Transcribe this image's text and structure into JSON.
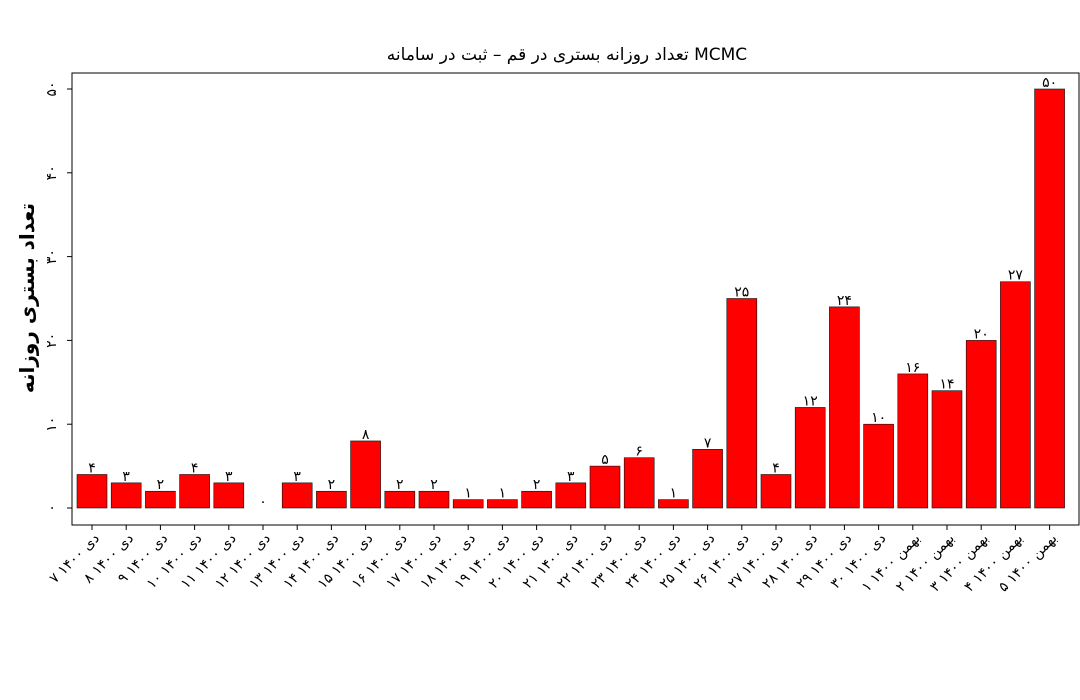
{
  "chart_data": {
    "type": "bar",
    "title": "تعداد روزانه بستری در قم – ثبت در سامانه MCMC",
    "xlabel": "",
    "ylabel": "تعداد بستری روزانه",
    "ylim": [
      0,
      52
    ],
    "yticks": [
      0,
      10,
      20,
      30,
      40,
      50
    ],
    "ytick_labels": [
      "۰",
      "۱۰",
      "۲۰",
      "۳۰",
      "۴۰",
      "۵۰"
    ],
    "grid": false,
    "bar_color": "#ff0000",
    "categories": [
      "۷ دی ۱۴۰۰",
      "۸ دی ۱۴۰۰",
      "۹ دی ۱۴۰۰",
      "۱۰ دی ۱۴۰۰",
      "۱۱ دی ۱۴۰۰",
      "۱۲ دی ۱۴۰۰",
      "۱۳ دی ۱۴۰۰",
      "۱۴ دی ۱۴۰۰",
      "۱۵ دی ۱۴۰۰",
      "۱۶ دی ۱۴۰۰",
      "۱۷ دی ۱۴۰۰",
      "۱۸ دی ۱۴۰۰",
      "۱۹ دی ۱۴۰۰",
      "۲۰ دی ۱۴۰۰",
      "۲۱ دی ۱۴۰۰",
      "۲۲ دی ۱۴۰۰",
      "۲۳ دی ۱۴۰۰",
      "۲۴ دی ۱۴۰۰",
      "۲۵ دی ۱۴۰۰",
      "۲۶ دی ۱۴۰۰",
      "۲۷ دی ۱۴۰۰",
      "۲۸ دی ۱۴۰۰",
      "۲۹ دی ۱۴۰۰",
      "۳۰ دی ۱۴۰۰",
      "۱ بهمن ۱۴۰۰",
      "۲ بهمن ۱۴۰۰",
      "۳ بهمن ۱۴۰۰",
      "۴ بهمن ۱۴۰۰",
      "۵ بهمن ۱۴۰۰"
    ],
    "values": [
      4,
      3,
      2,
      4,
      3,
      0,
      3,
      2,
      8,
      2,
      2,
      1,
      1,
      2,
      3,
      5,
      6,
      1,
      7,
      25,
      4,
      12,
      24,
      10,
      16,
      14,
      20,
      27,
      50
    ],
    "data_labels": [
      "۴",
      "۳",
      "۲",
      "۴",
      "۳",
      "۰",
      "۳",
      "۲",
      "۸",
      "۲",
      "۲",
      "۱",
      "۱",
      "۲",
      "۳",
      "۵",
      "۶",
      "۱",
      "۷",
      "۲۵",
      "۴",
      "۱۲",
      "۲۴",
      "۱۰",
      "۱۶",
      "۱۴",
      "۲۰",
      "۲۷",
      "۵۰"
    ]
  }
}
